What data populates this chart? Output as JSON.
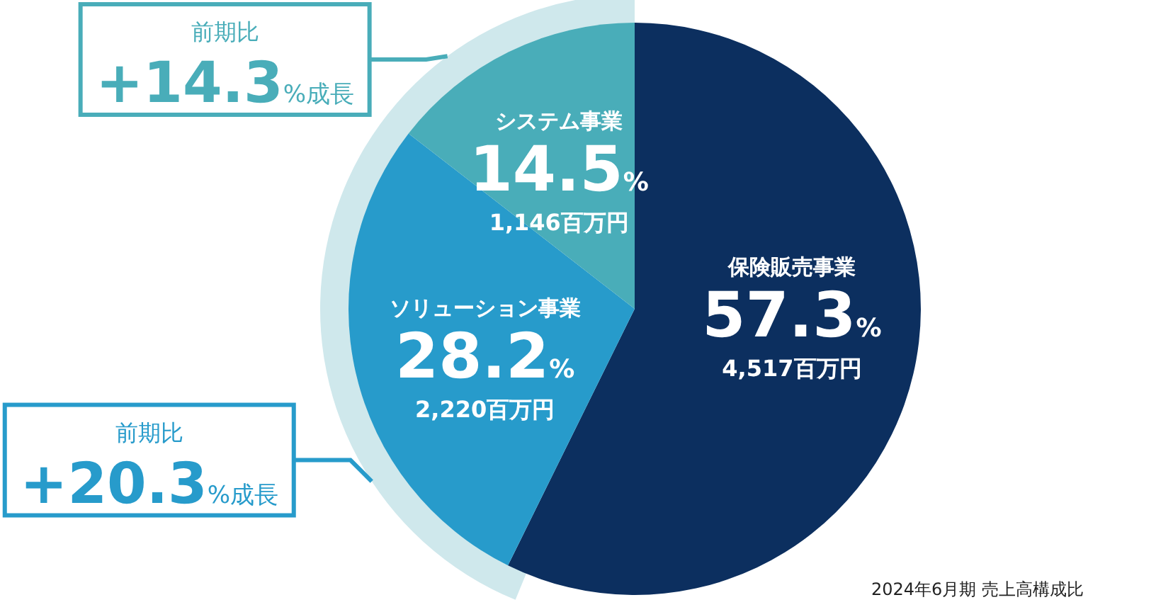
{
  "chart_data": {
    "type": "pie",
    "categories": [
      "保険販売事業",
      "ソリューション事業",
      "システム事業"
    ],
    "values": [
      57.3,
      28.2,
      14.5
    ],
    "colors": [
      "#0c2f5f",
      "#279bcb",
      "#49adb9"
    ],
    "value_labels": [
      "57.3%",
      "28.2%",
      "14.5%"
    ],
    "annotations": [
      {
        "text": "4,517百万円",
        "x": "保険販売事業"
      },
      {
        "text": "2,220百万円",
        "x": "ソリューション事業"
      },
      {
        "text": "1,146百万円",
        "x": "システム事業"
      },
      {
        "text": "前期比 +14.3%成長",
        "x": "システム事業"
      },
      {
        "text": "前期比 +20.3%成長",
        "x": "ソリューション事業"
      },
      "2024年6月期 売上高構成比"
    ]
  }
}
